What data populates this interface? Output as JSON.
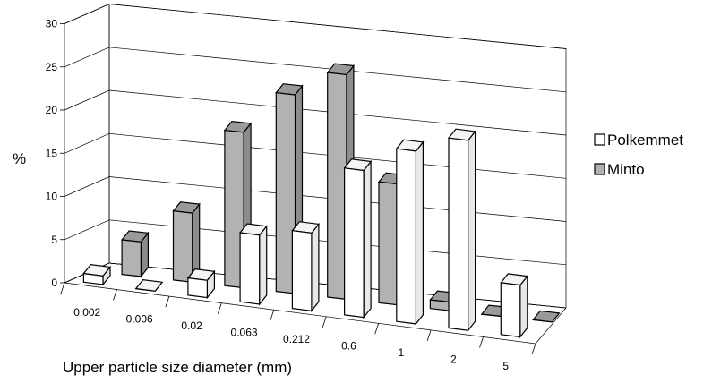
{
  "chart_data": {
    "type": "bar",
    "variant": "3d-clustered",
    "categories": [
      "0.002",
      "0.006",
      "0.02",
      "0.063",
      "0.212",
      "0.6",
      "1",
      "2",
      "5"
    ],
    "series": [
      {
        "name": "Polkemmet",
        "color": "#ffffff",
        "values": [
          1,
          0,
          2,
          8,
          9,
          17,
          20,
          22,
          6
        ]
      },
      {
        "name": "Minto",
        "color": "#b2b2b2",
        "values": [
          4,
          8,
          18,
          23,
          26,
          14,
          1,
          0,
          0
        ]
      }
    ],
    "xlabel": "Upper particle size diameter (mm)",
    "ylabel": "%",
    "ylim": [
      0,
      30
    ],
    "yticks": [
      "0",
      "5",
      "10",
      "15",
      "20",
      "25",
      "30"
    ],
    "grid": true,
    "legend": "right"
  }
}
